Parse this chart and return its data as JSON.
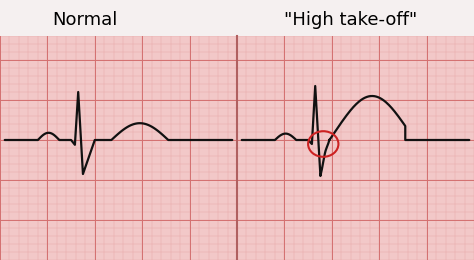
{
  "title_left": "Normal",
  "title_right": "\"High take-off\"",
  "bg_color": "#f2c8c8",
  "grid_major_color": "#d47070",
  "grid_minor_color": "#e8a8a8",
  "line_color": "#111111",
  "divider_color": "#b06060",
  "circle_color": "#cc2222",
  "title_fontsize": 13,
  "title_font_weight": "normal",
  "top_bar_color": "#f0f0f0",
  "figsize": [
    4.74,
    2.6
  ],
  "dpi": 100
}
